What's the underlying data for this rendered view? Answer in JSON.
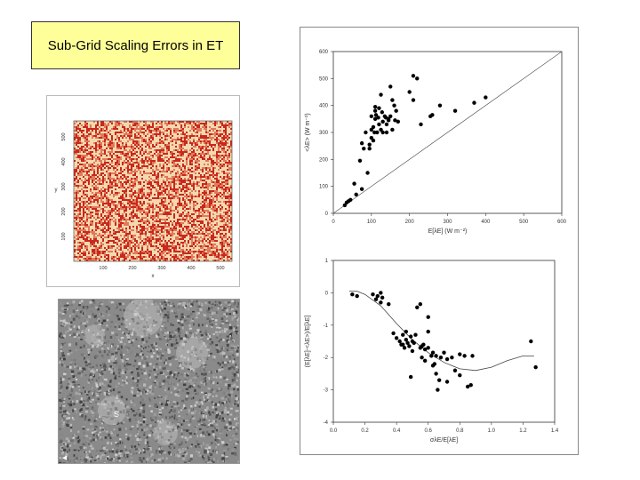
{
  "slide": {
    "title": "Sub-Grid Scaling Errors in ET"
  },
  "map": {
    "x_label": "x",
    "y_label": "y",
    "x_ticks": [
      "100",
      "200",
      "300",
      "400",
      "500"
    ],
    "y_ticks": [
      "100",
      "200",
      "300",
      "400",
      "500"
    ],
    "colors": {
      "low": "#f3d9b0",
      "high": "#c8281e"
    }
  },
  "photo": {
    "label_left": "◀",
    "label_mid": "S"
  },
  "chart_data": [
    {
      "type": "scatter",
      "xlabel": "E[λE] (W m⁻²)",
      "ylabel": "<λE> (W m⁻²)",
      "xlim": [
        0,
        600
      ],
      "ylim": [
        0,
        600
      ],
      "x_ticks": [
        "0",
        "100",
        "200",
        "300",
        "400",
        "500",
        "600"
      ],
      "y_ticks": [
        "0",
        "100",
        "200",
        "300",
        "400",
        "500",
        "600"
      ],
      "reference_line": {
        "label": "",
        "from": [
          0,
          0
        ],
        "to": [
          600,
          600
        ]
      },
      "points": [
        [
          30,
          30
        ],
        [
          35,
          40
        ],
        [
          40,
          45
        ],
        [
          45,
          50
        ],
        [
          60,
          70
        ],
        [
          55,
          110
        ],
        [
          75,
          90
        ],
        [
          70,
          195
        ],
        [
          80,
          240
        ],
        [
          75,
          260
        ],
        [
          90,
          150
        ],
        [
          95,
          240
        ],
        [
          85,
          300
        ],
        [
          100,
          310
        ],
        [
          100,
          280
        ],
        [
          105,
          320
        ],
        [
          110,
          350
        ],
        [
          100,
          360
        ],
        [
          110,
          380
        ],
        [
          115,
          300
        ],
        [
          120,
          330
        ],
        [
          125,
          310
        ],
        [
          130,
          340
        ],
        [
          135,
          360
        ],
        [
          120,
          390
        ],
        [
          140,
          330
        ],
        [
          145,
          350
        ],
        [
          150,
          360
        ],
        [
          155,
          310
        ],
        [
          140,
          300
        ],
        [
          130,
          300
        ],
        [
          125,
          440
        ],
        [
          150,
          470
        ],
        [
          160,
          400
        ],
        [
          165,
          380
        ],
        [
          170,
          340
        ],
        [
          155,
          420
        ],
        [
          200,
          450
        ],
        [
          210,
          510
        ],
        [
          220,
          500
        ],
        [
          210,
          420
        ],
        [
          230,
          330
        ],
        [
          255,
          360
        ],
        [
          260,
          365
        ],
        [
          280,
          400
        ],
        [
          320,
          380
        ],
        [
          370,
          410
        ],
        [
          400,
          430
        ],
        [
          145,
          345
        ],
        [
          138,
          355
        ],
        [
          110,
          395
        ],
        [
          105,
          270
        ],
        [
          95,
          255
        ],
        [
          112,
          365
        ],
        [
          128,
          375
        ],
        [
          118,
          355
        ],
        [
          108,
          300
        ],
        [
          162,
          345
        ]
      ]
    },
    {
      "type": "scatter",
      "xlabel": "σλE/E[λE]",
      "ylabel": "(E[λE]-<λE>)/E[λE]",
      "xlim": [
        0,
        1.4
      ],
      "ylim": [
        -4,
        1
      ],
      "x_ticks": [
        "0.0",
        "0.2",
        "0.4",
        "0.6",
        "0.8",
        "1.0",
        "1.2",
        "1.4"
      ],
      "y_ticks": [
        "1",
        "0",
        "-1",
        "-2",
        "-3",
        "-4"
      ],
      "fit_curve": [
        [
          0.1,
          0.05
        ],
        [
          0.15,
          0.05
        ],
        [
          0.2,
          -0.05
        ],
        [
          0.3,
          -0.4
        ],
        [
          0.4,
          -0.95
        ],
        [
          0.5,
          -1.45
        ],
        [
          0.6,
          -1.85
        ],
        [
          0.7,
          -2.15
        ],
        [
          0.8,
          -2.35
        ],
        [
          0.9,
          -2.4
        ],
        [
          1.0,
          -2.3
        ],
        [
          1.1,
          -2.1
        ],
        [
          1.2,
          -1.95
        ],
        [
          1.27,
          -1.95
        ]
      ],
      "points": [
        [
          0.12,
          -0.05
        ],
        [
          0.15,
          -0.1
        ],
        [
          0.25,
          -0.05
        ],
        [
          0.27,
          -0.2
        ],
        [
          0.28,
          -0.1
        ],
        [
          0.3,
          0.0
        ],
        [
          0.3,
          -0.3
        ],
        [
          0.31,
          -0.15
        ],
        [
          0.35,
          -0.35
        ],
        [
          0.38,
          -1.25
        ],
        [
          0.4,
          -1.4
        ],
        [
          0.42,
          -1.5
        ],
        [
          0.43,
          -1.6
        ],
        [
          0.44,
          -1.3
        ],
        [
          0.45,
          -1.7
        ],
        [
          0.46,
          -1.45
        ],
        [
          0.47,
          -1.55
        ],
        [
          0.48,
          -1.65
        ],
        [
          0.49,
          -1.35
        ],
        [
          0.5,
          -1.5
        ],
        [
          0.5,
          -1.8
        ],
        [
          0.52,
          -1.3
        ],
        [
          0.53,
          -0.45
        ],
        [
          0.55,
          -1.7
        ],
        [
          0.55,
          -0.35
        ],
        [
          0.56,
          -2.0
        ],
        [
          0.57,
          -1.6
        ],
        [
          0.58,
          -2.1
        ],
        [
          0.6,
          -0.75
        ],
        [
          0.6,
          -1.2
        ],
        [
          0.6,
          -1.7
        ],
        [
          0.62,
          -1.95
        ],
        [
          0.63,
          -2.25
        ],
        [
          0.63,
          -1.85
        ],
        [
          0.64,
          -2.2
        ],
        [
          0.65,
          -1.95
        ],
        [
          0.65,
          -2.5
        ],
        [
          0.66,
          -3.0
        ],
        [
          0.67,
          -2.7
        ],
        [
          0.68,
          -2.0
        ],
        [
          0.7,
          -1.85
        ],
        [
          0.72,
          -2.05
        ],
        [
          0.72,
          -2.75
        ],
        [
          0.75,
          -2.0
        ],
        [
          0.77,
          -2.4
        ],
        [
          0.8,
          -2.55
        ],
        [
          0.8,
          -1.9
        ],
        [
          0.83,
          -1.95
        ],
        [
          0.85,
          -2.9
        ],
        [
          0.87,
          -2.85
        ],
        [
          0.88,
          -1.95
        ],
        [
          0.49,
          -2.6
        ],
        [
          0.44,
          -1.6
        ],
        [
          0.56,
          -1.65
        ],
        [
          1.25,
          -1.5
        ],
        [
          1.28,
          -2.3
        ],
        [
          0.46,
          -1.2
        ],
        [
          0.51,
          -1.55
        ],
        [
          0.58,
          -1.75
        ]
      ]
    }
  ]
}
